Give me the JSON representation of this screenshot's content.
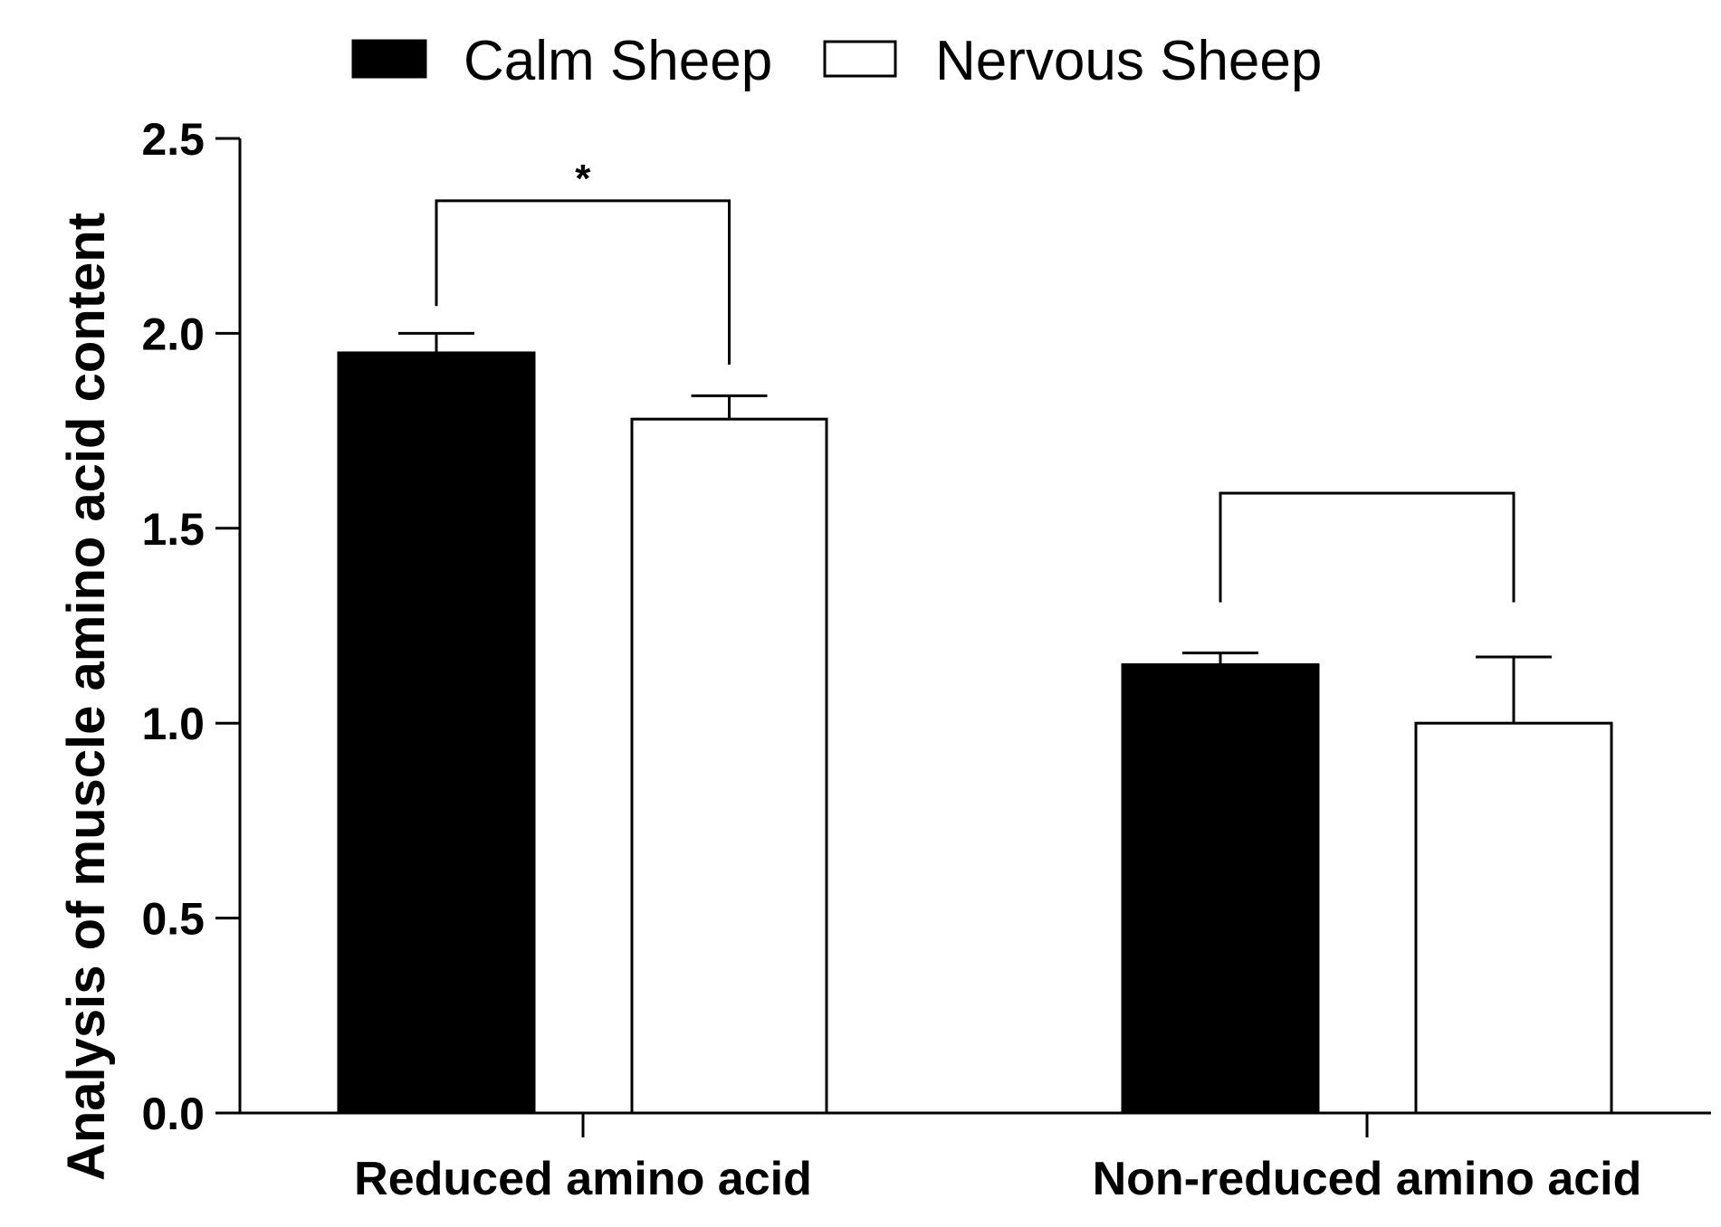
{
  "chart_data": {
    "type": "bar",
    "title": "",
    "xlabel": "",
    "ylabel": "Analysis of muscle amino acid content",
    "ylim": [
      0,
      2.5
    ],
    "yticks": [
      "0.0",
      "0.5",
      "1.0",
      "1.5",
      "2.0",
      "2.5"
    ],
    "grid": false,
    "legend_position": "top",
    "categories": [
      "Reduced amino acid",
      "Non-reduced amino acid"
    ],
    "series": [
      {
        "name": "Calm Sheep",
        "color": "#000000",
        "fill": "#000000",
        "values": [
          1.95,
          1.15
        ],
        "errors": [
          0.05,
          0.03
        ]
      },
      {
        "name": "Nervous Sheep",
        "color": "#000000",
        "fill": "#ffffff",
        "values": [
          1.78,
          1.0
        ],
        "errors": [
          0.06,
          0.17
        ]
      }
    ],
    "significance": [
      {
        "category_index": 0,
        "label": "*",
        "bracket_y": 2.34,
        "leg_ends": [
          2.07,
          1.92
        ]
      },
      {
        "category_index": 1,
        "label": "",
        "bracket_y": 1.59,
        "leg_ends": [
          1.31,
          1.31
        ]
      }
    ]
  }
}
